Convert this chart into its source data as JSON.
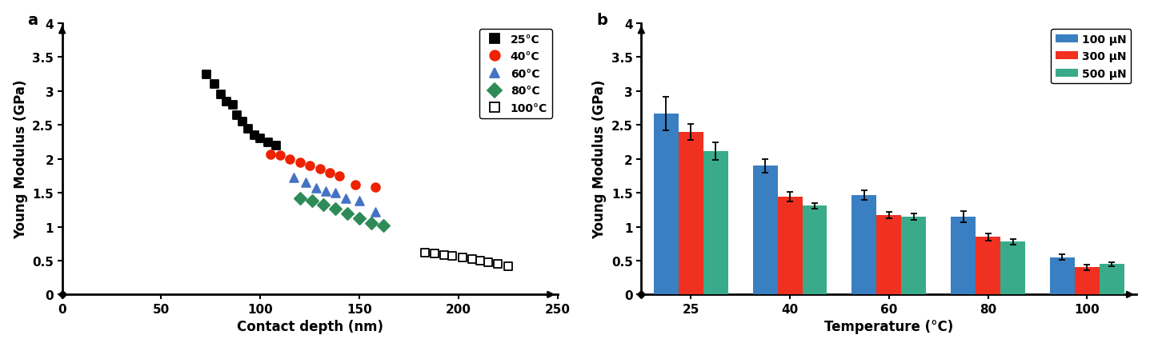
{
  "panel_a": {
    "xlabel": "Contact depth (nm)",
    "ylabel": "Young Modulus (GPa)",
    "xlim": [
      0,
      250
    ],
    "ylim": [
      0,
      4
    ],
    "xticks": [
      0,
      50,
      100,
      150,
      200,
      250
    ],
    "yticks": [
      0,
      0.5,
      1.0,
      1.5,
      2.0,
      2.5,
      3.0,
      3.5,
      4.0
    ],
    "ytick_labels": [
      "0",
      "0.5",
      "1",
      "1.5",
      "2",
      "2.5",
      "3",
      "3.5",
      "4"
    ],
    "series": {
      "25C": {
        "color": "#000000",
        "marker": "s",
        "filled": true,
        "x": [
          73,
          77,
          80,
          83,
          86,
          88,
          91,
          94,
          97,
          100,
          104,
          108
        ],
        "y": [
          3.25,
          3.1,
          2.95,
          2.85,
          2.8,
          2.65,
          2.55,
          2.45,
          2.35,
          2.3,
          2.25,
          2.2
        ]
      },
      "40C": {
        "color": "#ee2200",
        "marker": "o",
        "filled": true,
        "x": [
          105,
          110,
          115,
          120,
          125,
          130,
          135,
          140,
          148,
          158
        ],
        "y": [
          2.07,
          2.05,
          2.0,
          1.95,
          1.9,
          1.85,
          1.8,
          1.75,
          1.62,
          1.58
        ]
      },
      "60C": {
        "color": "#4472c4",
        "marker": "^",
        "filled": true,
        "x": [
          117,
          123,
          128,
          133,
          138,
          143,
          150,
          158
        ],
        "y": [
          1.72,
          1.65,
          1.57,
          1.53,
          1.5,
          1.42,
          1.38,
          1.22
        ]
      },
      "80C": {
        "color": "#2e8b57",
        "marker": "D",
        "filled": true,
        "x": [
          120,
          126,
          132,
          138,
          144,
          150,
          156,
          162
        ],
        "y": [
          1.42,
          1.38,
          1.32,
          1.27,
          1.2,
          1.13,
          1.05,
          1.02
        ]
      },
      "100C": {
        "color": "#000000",
        "marker": "s",
        "filled": false,
        "x": [
          183,
          188,
          193,
          197,
          202,
          207,
          211,
          215,
          220,
          225
        ],
        "y": [
          0.62,
          0.6,
          0.58,
          0.57,
          0.55,
          0.52,
          0.5,
          0.48,
          0.45,
          0.42
        ]
      }
    },
    "legend": [
      {
        "label": "25°C",
        "color": "#000000",
        "marker": "s",
        "filled": true
      },
      {
        "label": "40°C",
        "color": "#ee2200",
        "marker": "o",
        "filled": true
      },
      {
        "label": "60°C",
        "color": "#4472c4",
        "marker": "^",
        "filled": true
      },
      {
        "label": "80°C",
        "color": "#2e8b57",
        "marker": "D",
        "filled": true
      },
      {
        "label": "100°C",
        "color": "#000000",
        "marker": "s",
        "filled": false
      }
    ]
  },
  "panel_b": {
    "xlabel": "Temperature (°C)",
    "ylabel": "Young Modulus (GPa)",
    "ylim": [
      0,
      4
    ],
    "yticks": [
      0,
      0.5,
      1.0,
      1.5,
      2.0,
      2.5,
      3.0,
      3.5,
      4.0
    ],
    "ytick_labels": [
      "0",
      "0.5",
      "1",
      "1.5",
      "2",
      "2.5",
      "3",
      "3.5",
      "4"
    ],
    "temperatures": [
      25,
      40,
      60,
      80,
      100
    ],
    "bar_width": 0.25,
    "colors": [
      "#3a7fc1",
      "#f03020",
      "#3aab8a"
    ],
    "labels": [
      "100 μN",
      "300 μN",
      "500 μN"
    ],
    "values": {
      "100uN": [
        2.67,
        1.9,
        1.47,
        1.15,
        0.55
      ],
      "300uN": [
        2.4,
        1.44,
        1.17,
        0.85,
        0.4
      ],
      "500uN": [
        2.12,
        1.31,
        1.15,
        0.78,
        0.45
      ]
    },
    "errors": {
      "100uN": [
        0.25,
        0.1,
        0.07,
        0.08,
        0.04
      ],
      "300uN": [
        0.12,
        0.07,
        0.05,
        0.05,
        0.04
      ],
      "500uN": [
        0.13,
        0.04,
        0.05,
        0.04,
        0.03
      ]
    }
  }
}
